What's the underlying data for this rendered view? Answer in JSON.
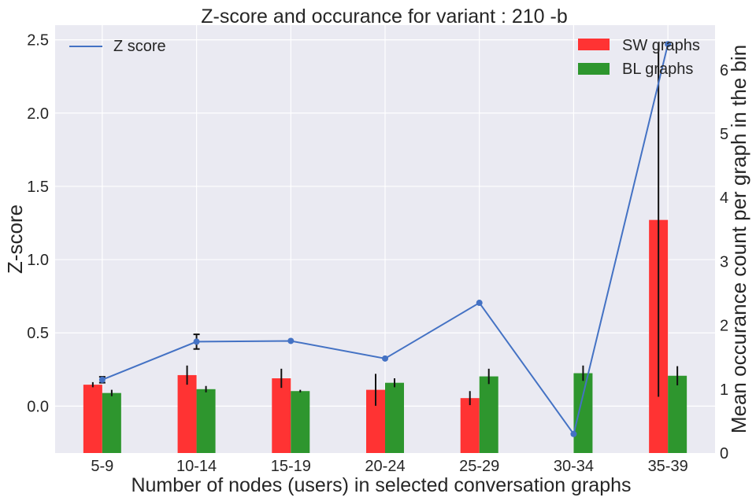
{
  "chart_data": {
    "type": "bar",
    "title": "Z-score and occurance for variant : 210 -b",
    "xlabel": "Number of nodes (users) in selected conversation graphs",
    "ylabel_left": "Z-score",
    "ylabel_right": "Mean occurance count per graph in the bin",
    "categories": [
      "5-9",
      "10-14",
      "15-19",
      "20-24",
      "25-29",
      "30-34",
      "35-39"
    ],
    "left_axis": {
      "ylim": [
        -0.32,
        2.6
      ],
      "ticks": [
        0.0,
        0.5,
        1.0,
        1.5,
        2.0,
        2.5
      ],
      "tick_labels": [
        "0.0",
        "0.5",
        "1.0",
        "1.5",
        "2.0",
        "2.5"
      ]
    },
    "right_axis": {
      "ylim": [
        0,
        6.7
      ],
      "ticks": [
        0,
        1,
        2,
        3,
        4,
        5,
        6
      ],
      "tick_labels": [
        "0",
        "1",
        "2",
        "3",
        "4",
        "5",
        "6"
      ]
    },
    "line_series": {
      "name": "Z score",
      "axis": "left",
      "color": "#4472c4",
      "values": [
        0.18,
        0.44,
        0.445,
        0.325,
        0.705,
        -0.19,
        2.47
      ],
      "error": [
        0.02,
        0.05,
        0,
        0,
        0,
        0,
        0
      ]
    },
    "bar_series": [
      {
        "name": "SW graphs",
        "axis": "right",
        "color": "#ff3333",
        "values": [
          1.07,
          1.22,
          1.17,
          0.99,
          0.86,
          0.0,
          3.65
        ],
        "error": [
          0.04,
          0.15,
          0.15,
          0.25,
          0.11,
          0.0,
          2.77
        ]
      },
      {
        "name": "BL graphs",
        "axis": "right",
        "color": "#2e962e",
        "values": [
          0.94,
          1.0,
          0.97,
          1.1,
          1.2,
          1.25,
          1.21
        ],
        "error": [
          0.05,
          0.05,
          0.02,
          0.07,
          0.12,
          0.12,
          0.15
        ]
      }
    ],
    "grid": true,
    "legend_line_position": "top-left",
    "legend_bars_position": "top-right",
    "background": "#eaeaf2"
  }
}
